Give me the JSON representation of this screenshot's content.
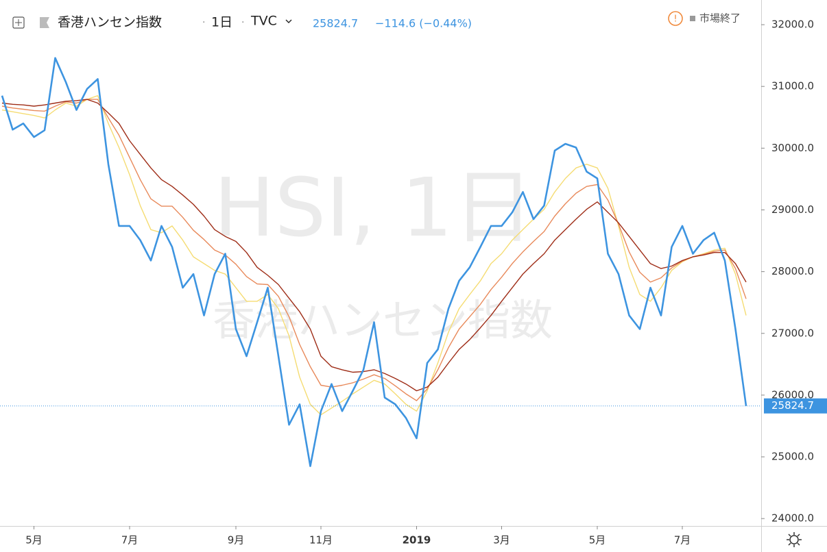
{
  "chart_data": {
    "type": "line",
    "title": "香港ハンセン指数",
    "interval": "1日",
    "source": "TVC",
    "last_value": 25824.7,
    "change": "−114.6 (−0.44%)",
    "status": "市場終了",
    "watermark": "HSI, 1日",
    "watermark_subtitle": "香港ハンセン指数",
    "grid": false,
    "ylim": [
      23880,
      32400
    ],
    "yticks": [
      {
        "value": 24000,
        "label": "24000.0"
      },
      {
        "value": 25000,
        "label": "25000.0"
      },
      {
        "value": 26000,
        "label": "26000.0"
      },
      {
        "value": 27000,
        "label": "27000.0"
      },
      {
        "value": 28000,
        "label": "28000.0"
      },
      {
        "value": 29000,
        "label": "29000.0"
      },
      {
        "value": 30000,
        "label": "30000.0"
      },
      {
        "value": 31000,
        "label": "31000.0"
      },
      {
        "value": 32000,
        "label": "32000.0"
      }
    ],
    "categories": [
      null,
      null,
      null,
      "5月",
      null,
      null,
      null,
      null,
      null,
      null,
      null,
      null,
      "7月",
      null,
      null,
      null,
      null,
      null,
      null,
      null,
      null,
      null,
      "9月",
      null,
      null,
      null,
      null,
      null,
      null,
      null,
      "11月",
      null,
      null,
      null,
      null,
      null,
      null,
      null,
      null,
      "2019",
      null,
      null,
      null,
      null,
      null,
      null,
      null,
      "3月",
      null,
      null,
      null,
      null,
      null,
      null,
      null,
      null,
      "5月",
      null,
      null,
      null,
      null,
      null,
      null,
      null,
      "7月",
      null,
      null,
      null,
      null,
      null,
      null
    ],
    "series": [
      {
        "color": "#f5dc72",
        "values": [
          30620,
          30590,
          30560,
          30530,
          30490,
          30620,
          30730,
          30680,
          30790,
          30850,
          30400,
          30010,
          29570,
          29070,
          28680,
          28630,
          28740,
          28510,
          28240,
          28130,
          28020,
          27960,
          27740,
          27520,
          27520,
          27630,
          27400,
          26960,
          26290,
          25850,
          25680,
          25790,
          25900,
          26020,
          26130,
          26240,
          26180,
          26020,
          25850,
          25740,
          26070,
          26520,
          27020,
          27400,
          27630,
          27850,
          28130,
          28290,
          28510,
          28680,
          28850,
          29010,
          29290,
          29510,
          29680,
          29740,
          29680,
          29350,
          28740,
          28070,
          27630,
          27520,
          27740,
          28020,
          28160,
          28240,
          28290,
          28350,
          28380,
          27960,
          27290
        ]
      },
      {
        "color": "#e8895a",
        "values": [
          30680,
          30650,
          30630,
          30610,
          30600,
          30680,
          30750,
          30730,
          30790,
          30790,
          30490,
          30210,
          29850,
          29490,
          29180,
          29060,
          29060,
          28880,
          28670,
          28520,
          28350,
          28270,
          28120,
          27920,
          27800,
          27790,
          27600,
          27270,
          26820,
          26460,
          26160,
          26130,
          26160,
          26200,
          26260,
          26330,
          26270,
          26150,
          26020,
          25910,
          26100,
          26410,
          26770,
          27070,
          27270,
          27470,
          27710,
          27910,
          28130,
          28320,
          28490,
          28650,
          28900,
          29100,
          29270,
          29380,
          29410,
          29160,
          28770,
          28320,
          27990,
          27830,
          27900,
          28060,
          28170,
          28240,
          28280,
          28330,
          28350,
          28050,
          27560
        ]
      },
      {
        "color": "#9e2c16",
        "values": [
          30730,
          30710,
          30700,
          30680,
          30700,
          30730,
          30760,
          30770,
          30790,
          30730,
          30570,
          30400,
          30120,
          29900,
          29680,
          29490,
          29380,
          29240,
          29090,
          28900,
          28680,
          28570,
          28490,
          28310,
          28070,
          27940,
          27790,
          27570,
          27350,
          27070,
          26630,
          26460,
          26410,
          26370,
          26380,
          26410,
          26350,
          26270,
          26180,
          26070,
          26130,
          26290,
          26520,
          26740,
          26900,
          27090,
          27290,
          27520,
          27740,
          27960,
          28130,
          28290,
          28510,
          28680,
          28850,
          29010,
          29130,
          28960,
          28790,
          28570,
          28350,
          28130,
          28050,
          28090,
          28180,
          28240,
          28270,
          28310,
          28310,
          28130,
          27830
        ]
      },
      {
        "color": "#3d94e0",
        "values": [
          30850,
          30300,
          30400,
          30180,
          30290,
          31460,
          31070,
          30620,
          30960,
          31120,
          29740,
          28740,
          28740,
          28510,
          28180,
          28740,
          28400,
          27740,
          27960,
          27290,
          27960,
          28290,
          27070,
          26630,
          27180,
          27740,
          26630,
          25520,
          25850,
          24850,
          25740,
          26180,
          25740,
          26070,
          26410,
          27180,
          25960,
          25850,
          25630,
          25300,
          26520,
          26740,
          27400,
          27850,
          28070,
          28400,
          28740,
          28740,
          28960,
          29290,
          28850,
          29070,
          29960,
          30070,
          30010,
          29620,
          29510,
          28290,
          27960,
          27290,
          27070,
          27740,
          27290,
          28400,
          28740,
          28290,
          28510,
          28630,
          28180,
          27070,
          25824.7
        ]
      }
    ]
  }
}
